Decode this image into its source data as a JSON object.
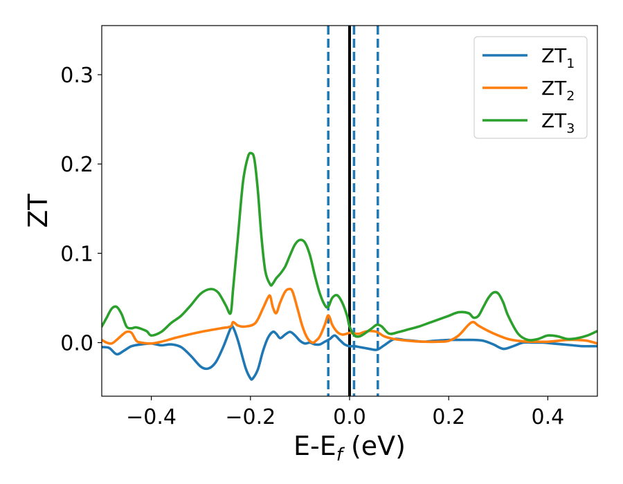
{
  "chart_data": {
    "type": "line",
    "xlabel": "E-E",
    "xlabel_sub": "f",
    "xlabel_unit": " (eV)",
    "ylabel": "ZT",
    "xlim": [
      -0.5,
      0.5
    ],
    "ylim": [
      -0.06,
      0.355
    ],
    "xticks": [
      -0.4,
      -0.2,
      0.0,
      0.2,
      0.4
    ],
    "xtick_labels": [
      "−0.4",
      "−0.2",
      "0.0",
      "0.2",
      "0.4"
    ],
    "yticks": [
      0.0,
      0.1,
      0.2,
      0.3
    ],
    "ytick_labels": [
      "0.0",
      "0.1",
      "0.2",
      "0.3"
    ],
    "grid": false,
    "legend_position": "top-right",
    "vertical_lines": [
      {
        "x": -0.043,
        "style": "dashed",
        "color": "#1f77b4"
      },
      {
        "x": 0.009,
        "style": "dashed",
        "color": "#1f77b4"
      },
      {
        "x": 0.057,
        "style": "dashed",
        "color": "#1f77b4"
      },
      {
        "x": 0.0,
        "style": "solid",
        "color": "#000000"
      }
    ],
    "series": [
      {
        "name": "ZT",
        "sub": "1",
        "color": "#1f77b4",
        "x": [
          -0.5,
          -0.485,
          -0.47,
          -0.455,
          -0.44,
          -0.42,
          -0.4,
          -0.38,
          -0.36,
          -0.34,
          -0.32,
          -0.3,
          -0.285,
          -0.27,
          -0.255,
          -0.24,
          -0.235,
          -0.225,
          -0.21,
          -0.2,
          -0.195,
          -0.185,
          -0.175,
          -0.165,
          -0.155,
          -0.148,
          -0.14,
          -0.13,
          -0.12,
          -0.11,
          -0.1,
          -0.09,
          -0.08,
          -0.07,
          -0.06,
          -0.05,
          -0.04,
          -0.03,
          -0.02,
          -0.01,
          0.0,
          0.01,
          0.02,
          0.03,
          0.04,
          0.055,
          0.07,
          0.09,
          0.11,
          0.13,
          0.15,
          0.17,
          0.2,
          0.23,
          0.25,
          0.27,
          0.29,
          0.31,
          0.33,
          0.35,
          0.37,
          0.39,
          0.41,
          0.43,
          0.45,
          0.47,
          0.5
        ],
        "y": [
          -0.005,
          -0.006,
          -0.013,
          -0.009,
          -0.004,
          -0.002,
          -0.001,
          -0.003,
          -0.002,
          -0.005,
          -0.015,
          -0.027,
          -0.029,
          -0.022,
          -0.005,
          0.016,
          0.017,
          0.002,
          -0.028,
          -0.04,
          -0.04,
          -0.03,
          -0.01,
          0.005,
          0.012,
          0.01,
          0.005,
          0.009,
          0.012,
          0.008,
          0.002,
          -0.001,
          0.0,
          -0.002,
          -0.002,
          0.001,
          0.004,
          0.008,
          0.003,
          -0.002,
          -0.004,
          -0.004,
          -0.005,
          -0.006,
          -0.007,
          -0.008,
          -0.003,
          0.004,
          0.003,
          0.002,
          0.001,
          0.002,
          0.003,
          0.003,
          0.003,
          0.002,
          -0.002,
          -0.007,
          -0.004,
          0.0,
          0.0,
          0.0,
          -0.001,
          -0.002,
          -0.003,
          -0.004,
          -0.004
        ]
      },
      {
        "name": "ZT",
        "sub": "2",
        "color": "#ff7f0e",
        "x": [
          -0.5,
          -0.49,
          -0.48,
          -0.47,
          -0.46,
          -0.45,
          -0.44,
          -0.43,
          -0.42,
          -0.4,
          -0.38,
          -0.36,
          -0.34,
          -0.3,
          -0.26,
          -0.24,
          -0.235,
          -0.225,
          -0.21,
          -0.19,
          -0.175,
          -0.165,
          -0.16,
          -0.155,
          -0.148,
          -0.14,
          -0.13,
          -0.122,
          -0.115,
          -0.105,
          -0.095,
          -0.085,
          -0.075,
          -0.068,
          -0.06,
          -0.05,
          -0.044,
          -0.04,
          -0.035,
          -0.025,
          -0.015,
          -0.005,
          0.0,
          0.01,
          0.02,
          0.03,
          0.04,
          0.055,
          0.07,
          0.09,
          0.12,
          0.15,
          0.18,
          0.2,
          0.22,
          0.24,
          0.25,
          0.26,
          0.28,
          0.3,
          0.32,
          0.34,
          0.36,
          0.38,
          0.4,
          0.42,
          0.44,
          0.46,
          0.48,
          0.5
        ],
        "y": [
          0.003,
          0.0,
          -0.001,
          0.003,
          0.008,
          0.012,
          0.011,
          0.002,
          0.0,
          -0.001,
          0.001,
          0.004,
          0.007,
          0.012,
          0.016,
          0.018,
          0.023,
          0.019,
          0.018,
          0.022,
          0.038,
          0.05,
          0.052,
          0.04,
          0.033,
          0.045,
          0.057,
          0.06,
          0.057,
          0.038,
          0.018,
          0.005,
          0.0,
          0.002,
          0.007,
          0.02,
          0.03,
          0.028,
          0.02,
          0.012,
          0.009,
          0.01,
          0.011,
          0.01,
          0.01,
          0.012,
          0.013,
          0.012,
          0.007,
          0.004,
          0.002,
          0.001,
          0.001,
          0.002,
          0.008,
          0.02,
          0.023,
          0.019,
          0.013,
          0.008,
          0.004,
          0.002,
          0.001,
          0.001,
          0.001,
          0.002,
          0.003,
          0.003,
          0.002,
          -0.001
        ]
      },
      {
        "name": "ZT",
        "sub": "3",
        "color": "#2ca02c",
        "x": [
          -0.5,
          -0.49,
          -0.48,
          -0.47,
          -0.46,
          -0.45,
          -0.44,
          -0.43,
          -0.41,
          -0.4,
          -0.38,
          -0.36,
          -0.34,
          -0.32,
          -0.3,
          -0.28,
          -0.265,
          -0.25,
          -0.24,
          -0.235,
          -0.225,
          -0.215,
          -0.205,
          -0.198,
          -0.192,
          -0.185,
          -0.178,
          -0.17,
          -0.16,
          -0.155,
          -0.148,
          -0.14,
          -0.13,
          -0.12,
          -0.11,
          -0.1,
          -0.09,
          -0.08,
          -0.07,
          -0.06,
          -0.05,
          -0.043,
          -0.035,
          -0.025,
          -0.015,
          -0.005,
          0.0,
          0.01,
          0.02,
          0.03,
          0.045,
          0.055,
          0.065,
          0.08,
          0.1,
          0.12,
          0.14,
          0.16,
          0.18,
          0.2,
          0.22,
          0.24,
          0.25,
          0.26,
          0.27,
          0.28,
          0.29,
          0.3,
          0.31,
          0.32,
          0.34,
          0.36,
          0.38,
          0.4,
          0.42,
          0.44,
          0.46,
          0.48,
          0.5
        ],
        "y": [
          0.018,
          0.028,
          0.038,
          0.04,
          0.032,
          0.018,
          0.016,
          0.017,
          0.013,
          0.008,
          0.012,
          0.022,
          0.03,
          0.042,
          0.055,
          0.06,
          0.056,
          0.042,
          0.033,
          0.06,
          0.12,
          0.18,
          0.208,
          0.212,
          0.205,
          0.17,
          0.12,
          0.08,
          0.065,
          0.066,
          0.072,
          0.077,
          0.085,
          0.098,
          0.11,
          0.115,
          0.112,
          0.098,
          0.075,
          0.055,
          0.042,
          0.04,
          0.05,
          0.053,
          0.045,
          0.03,
          0.018,
          0.008,
          0.007,
          0.01,
          0.016,
          0.02,
          0.018,
          0.01,
          0.012,
          0.015,
          0.018,
          0.022,
          0.026,
          0.03,
          0.034,
          0.033,
          0.028,
          0.03,
          0.04,
          0.05,
          0.056,
          0.055,
          0.045,
          0.03,
          0.01,
          0.003,
          0.004,
          0.008,
          0.007,
          0.004,
          0.005,
          0.008,
          0.013
        ]
      }
    ]
  }
}
